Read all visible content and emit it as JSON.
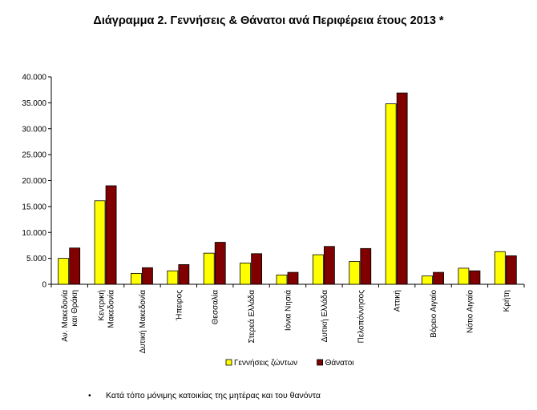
{
  "chart_data": {
    "type": "bar",
    "title": "Διάγραμμα 2.  Γεννήσεις & Θάνατοι ανά Περιφέρεια έτους 2013 *",
    "categories": [
      [
        "Αν. Μακεδονία",
        "και Θράκη"
      ],
      [
        "Κεντρική",
        "Μακεδονία"
      ],
      [
        "Δυτική Μακεδονία"
      ],
      [
        "Ήπειρος"
      ],
      [
        "Θεσσαλία"
      ],
      [
        "Στερεά Ελλάδα"
      ],
      [
        "Ιόνια Νησιά"
      ],
      [
        "Δυτική Ελλάδα"
      ],
      [
        "Πελοπόννησος"
      ],
      [
        "Αττική"
      ],
      [
        "Βόρειο Αιγαίο"
      ],
      [
        "Νότιο Αιγαίο"
      ],
      [
        "Κρήτη"
      ]
    ],
    "series": [
      {
        "name": "Γεννήσεις ζώντων",
        "color": "#ffff00",
        "values": [
          5000,
          16100,
          2100,
          2600,
          6000,
          4100,
          1800,
          5700,
          4400,
          34800,
          1600,
          3100,
          6300
        ]
      },
      {
        "name": "Θάνατοι",
        "color": "#800000",
        "values": [
          7000,
          19000,
          3200,
          3800,
          8100,
          5900,
          2300,
          7300,
          6900,
          36900,
          2300,
          2600,
          5500
        ]
      }
    ],
    "ylim": [
      0,
      40000
    ],
    "yticks": [
      "0",
      "5.000",
      "10.000",
      "15.000",
      "20.000",
      "25.000",
      "30.000",
      "35.000",
      "40.000"
    ],
    "grid": false,
    "legend": "bottom"
  },
  "footnote": {
    "bullet": "•",
    "text": "Κατά τόπο μόνιμης κατοικίας της μητέρας και του θανόντα"
  }
}
